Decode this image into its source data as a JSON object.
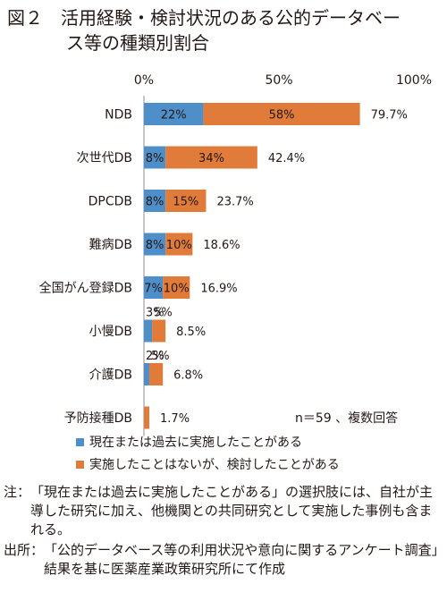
{
  "title": {
    "line1": "図２　活用経験・検討状況のある公的データベー",
    "line2": "ス等の種類別割合"
  },
  "chart_data": {
    "type": "bar",
    "orientation": "horizontal",
    "stacked": true,
    "categories": [
      "NDB",
      "次世代DB",
      "DPCDB",
      "難病DB",
      "全国がん登録DB",
      "小慢DB",
      "介護DB",
      "予防接種DB"
    ],
    "series": [
      {
        "name": "現在または過去に実施したことがある",
        "color": "#4f8fc9",
        "values": [
          22,
          8,
          8,
          8,
          7,
          3,
          2,
          0
        ],
        "labels": [
          "22%",
          "8%",
          "8%",
          "8%",
          "7%",
          "3%",
          "2%",
          ""
        ]
      },
      {
        "name": "実施したことはないが、検討したことがある",
        "color": "#e07b39",
        "values": [
          58,
          34,
          15,
          10,
          10,
          5,
          5,
          2
        ],
        "labels": [
          "58%",
          "34%",
          "15%",
          "10%",
          "10%",
          "5%",
          "5%",
          ""
        ]
      }
    ],
    "totals": [
      "79.7%",
      "42.4%",
      "23.7%",
      "18.6%",
      "16.9%",
      "8.5%",
      "6.8%",
      "1.7%"
    ],
    "xlim": [
      0,
      100
    ],
    "xticks": [
      "0%",
      "50%",
      "100%"
    ],
    "grid": false,
    "legend_position": "bottom-left",
    "annotation": "n＝59 、複数回答"
  },
  "notes": [
    {
      "label": "注：",
      "text": "「現在または過去に実施したことがある」の選択肢には、自社が主導した研究に加え、他機関との共同研究として実施した事例も含まれる。"
    },
    {
      "label": "出所：",
      "text": "「公的データベース等の利用状況や意向に関するアンケート調査」結果を基に医薬産業政策研究所にて作成"
    }
  ]
}
